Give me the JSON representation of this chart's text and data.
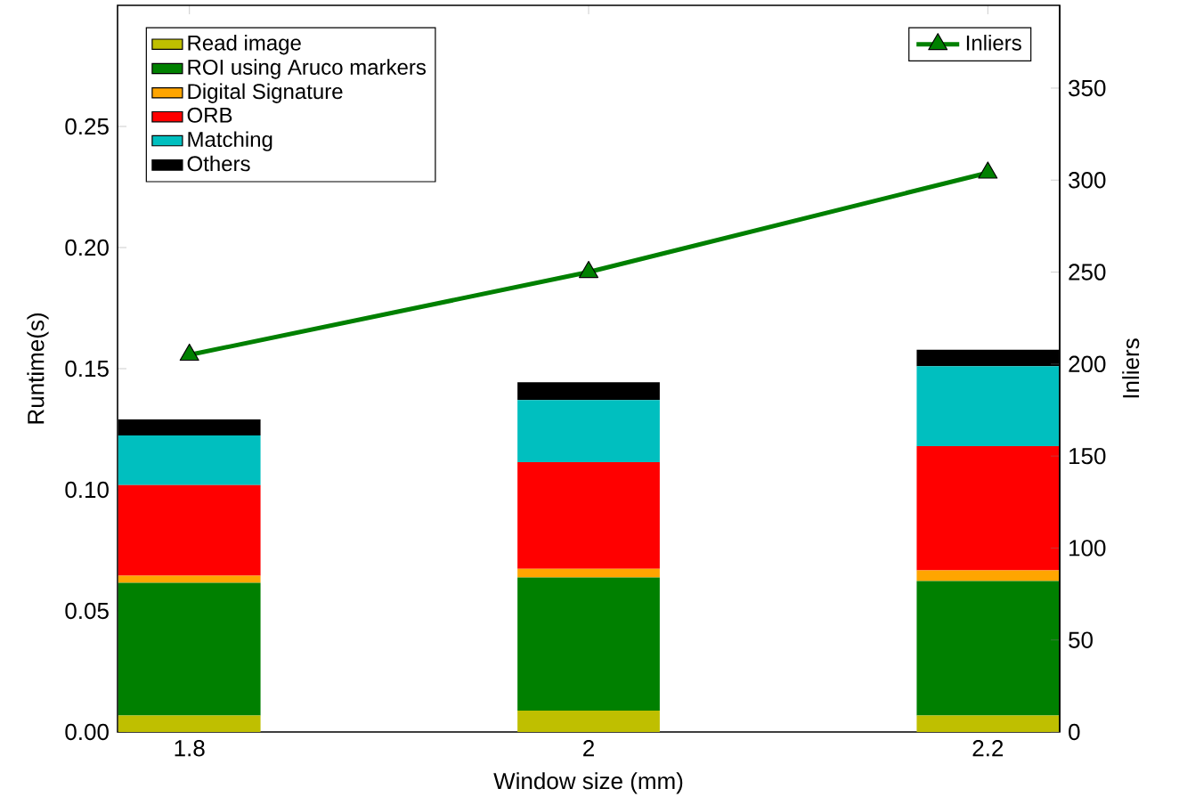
{
  "chart_data": {
    "type": "bar",
    "stacked": true,
    "xlabel": "Window size (mm)",
    "ylabel": "Runtime(s)",
    "y2label": "Inliers",
    "x": [
      1.8,
      2,
      2.2
    ],
    "xlim": [
      1.764,
      2.236
    ],
    "xticks": [
      1.8,
      2,
      2.2
    ],
    "ylim": [
      0,
      0.3
    ],
    "yticks": [
      {
        "value": 0,
        "label": "0.00"
      },
      {
        "value": 0.05,
        "label": "0.05"
      },
      {
        "value": 0.1,
        "label": "0.10"
      },
      {
        "value": 0.15,
        "label": "0.15"
      },
      {
        "value": 0.2,
        "label": "0.20"
      },
      {
        "value": 0.25,
        "label": "0.25"
      }
    ],
    "y2lim": [
      0,
      395
    ],
    "y2ticks": [
      0,
      50,
      100,
      150,
      200,
      250,
      300,
      350
    ],
    "legend": "top left",
    "marker": "triangle",
    "series": [
      {
        "name": "Read image",
        "color": "#bfbf00",
        "values": [
          0.0068,
          0.0088,
          0.0068
        ]
      },
      {
        "name": "ROI using Aruco markers",
        "color": "#008000",
        "values": [
          0.0548,
          0.055,
          0.0555
        ]
      },
      {
        "name": "Digital Signature",
        "color": "#ffa500",
        "values": [
          0.0029,
          0.0036,
          0.0044
        ]
      },
      {
        "name": "ORB",
        "color": "#ff0000",
        "values": [
          0.0374,
          0.044,
          0.0513
        ]
      },
      {
        "name": "Matching",
        "color": "#00bfbf",
        "values": [
          0.0205,
          0.0256,
          0.033
        ]
      },
      {
        "name": "Others",
        "color": "#000000",
        "values": [
          0.0066,
          0.0074,
          0.0068
        ]
      },
      {
        "name": "Inliers",
        "type": "line",
        "axis": "y2",
        "color": "#008000",
        "values": [
          205,
          250,
          304
        ]
      }
    ]
  }
}
